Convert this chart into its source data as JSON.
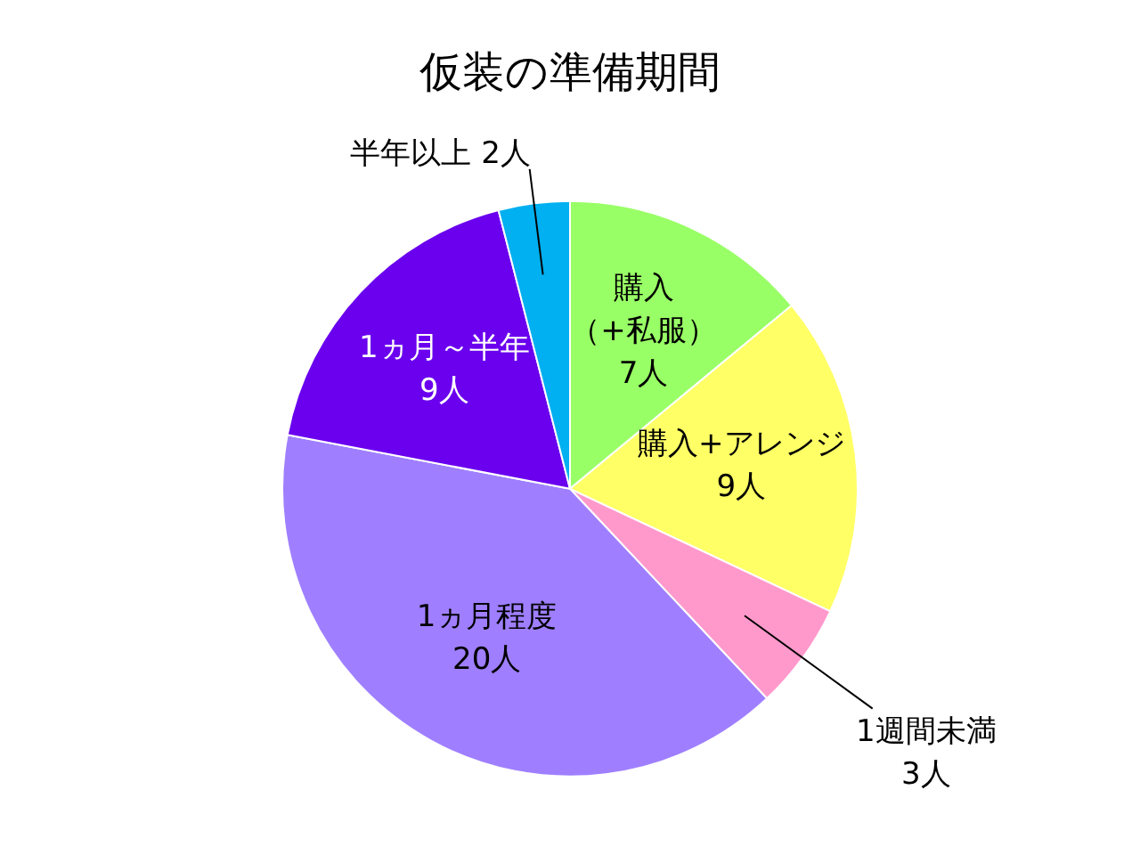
{
  "chart_data": {
    "type": "pie",
    "title": "仮装の準備期間",
    "categories": [
      "購入（+私服）",
      "購入+アレンジ",
      "1週間未満",
      "1ヵ月程度",
      "1ヵ月～半年",
      "半年以上"
    ],
    "values": [
      7,
      9,
      3,
      20,
      9,
      2
    ],
    "value_labels": [
      "7人",
      "9人",
      "3人",
      "20人",
      "9人",
      "2人"
    ],
    "colors": [
      "#99ff66",
      "#ffff66",
      "#ff99cc",
      "#9f7fff",
      "#6a00ee",
      "#00b0f0"
    ],
    "legend": false
  }
}
